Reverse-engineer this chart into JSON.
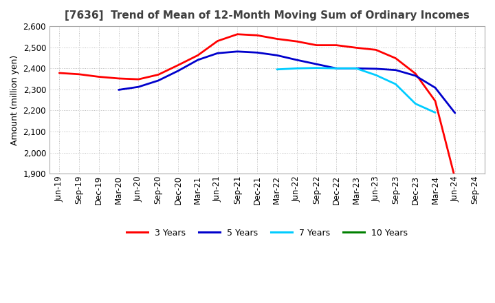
{
  "title": "[7636]  Trend of Mean of 12-Month Moving Sum of Ordinary Incomes",
  "ylabel": "Amount (million yen)",
  "background_color": "#ffffff",
  "plot_background": "#ffffff",
  "ylim": [
    1900,
    2600
  ],
  "yticks": [
    1900,
    2000,
    2100,
    2200,
    2300,
    2400,
    2500,
    2600
  ],
  "x_labels": [
    "Jun-19",
    "Sep-19",
    "Dec-19",
    "Mar-20",
    "Jun-20",
    "Sep-20",
    "Dec-20",
    "Mar-21",
    "Jun-21",
    "Sep-21",
    "Dec-21",
    "Mar-22",
    "Jun-22",
    "Sep-22",
    "Dec-22",
    "Mar-23",
    "Jun-23",
    "Sep-23",
    "Dec-23",
    "Mar-24",
    "Jun-24",
    "Sep-24"
  ],
  "series_order": [
    "3 Years",
    "5 Years",
    "7 Years",
    "10 Years"
  ],
  "series": {
    "3 Years": {
      "color": "#ff0000",
      "data_x": [
        0,
        1,
        2,
        3,
        4,
        5,
        6,
        7,
        8,
        9,
        10,
        11,
        12,
        13,
        14,
        15,
        16,
        17,
        18,
        19,
        20
      ],
      "data_y": [
        2378,
        2372,
        2360,
        2352,
        2348,
        2370,
        2415,
        2462,
        2530,
        2562,
        2557,
        2540,
        2528,
        2510,
        2510,
        2498,
        2488,
        2448,
        2375,
        2245,
        1878
      ]
    },
    "5 Years": {
      "color": "#0000cc",
      "data_x": [
        3,
        4,
        5,
        6,
        7,
        8,
        9,
        10,
        11,
        12,
        13,
        14,
        15,
        16,
        17,
        18,
        19,
        20
      ],
      "data_y": [
        2298,
        2312,
        2342,
        2388,
        2440,
        2472,
        2480,
        2475,
        2462,
        2440,
        2420,
        2400,
        2400,
        2398,
        2392,
        2365,
        2308,
        2188
      ]
    },
    "7 Years": {
      "color": "#00ccff",
      "data_x": [
        11,
        12,
        13,
        14,
        15,
        16,
        17,
        18,
        19
      ],
      "data_y": [
        2395,
        2400,
        2402,
        2400,
        2400,
        2368,
        2325,
        2232,
        2190
      ]
    },
    "10 Years": {
      "color": "#008000",
      "data_x": [],
      "data_y": []
    }
  },
  "legend_labels": [
    "3 Years",
    "5 Years",
    "7 Years",
    "10 Years"
  ],
  "legend_colors": [
    "#ff0000",
    "#0000cc",
    "#00ccff",
    "#008000"
  ],
  "grid_color": "#aaaaaa",
  "title_color": "#404040",
  "title_fontsize": 11,
  "tick_fontsize": 8.5,
  "ylabel_fontsize": 9
}
